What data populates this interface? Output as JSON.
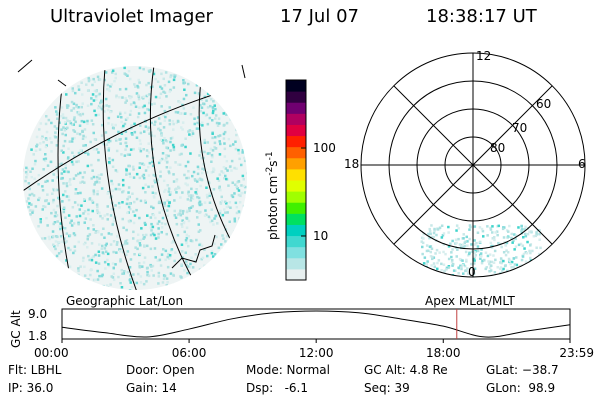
{
  "header": {
    "instrument": "Ultraviolet Imager",
    "date": "17 Jul 07",
    "time": "18:38:17 UT"
  },
  "colorbar": {
    "unit_label": "photon cm",
    "unit_exp1": "-2",
    "unit_mid": "s",
    "unit_exp2": "-1",
    "tick_labels": [
      "100",
      "10"
    ],
    "colors": [
      "#e8f0f0",
      "#b8e6e6",
      "#80e0e0",
      "#40d8d0",
      "#00d0c0",
      "#00e060",
      "#40f000",
      "#a0ff00",
      "#e0ff00",
      "#ffe000",
      "#ffa000",
      "#ff6000",
      "#ff2000",
      "#e00040",
      "#b00060",
      "#700070",
      "#300040",
      "#000020"
    ]
  },
  "polar": {
    "hour_labels": [
      "12",
      "18",
      "6",
      "0"
    ],
    "lat_labels": [
      "60",
      "70",
      "80"
    ]
  },
  "timeline": {
    "left_label": "Geographic Lat/Lon",
    "right_label": "Apex MLat/MLT",
    "y_axis_label": "GC Alt",
    "y_ticks": [
      "9.0",
      "1.8"
    ],
    "x_ticks": [
      "00:00",
      "06:00",
      "12:00",
      "18:00",
      "23:59"
    ],
    "marker_color": "#c04040"
  },
  "info": {
    "flt": "Flt: LBHL",
    "ip": "IP: 36.0",
    "door": "Door: Open",
    "gain": "Gain: 14",
    "mode": "Mode: Normal",
    "dsp": "Dsp:   -6.1",
    "gcalt": "GC Alt: 4.8 Re",
    "seq": "Seq: 39",
    "glat": "GLat: −38.7",
    "glon": "GLon:  98.9"
  },
  "chart_data": {
    "type": "line",
    "title": "",
    "xlabel": "",
    "ylabel": "GC Alt",
    "x": [
      "00:00",
      "02:00",
      "04:00",
      "06:00",
      "08:00",
      "10:00",
      "12:00",
      "14:00",
      "16:00",
      "18:00",
      "20:00",
      "22:00",
      "23:59"
    ],
    "series": [
      {
        "values": [
          4.5,
          3.0,
          1.8,
          4.0,
          6.8,
          8.5,
          9.0,
          8.5,
          6.8,
          4.8,
          1.8,
          3.5,
          5.2
        ]
      }
    ],
    "ylim": [
      1.8,
      9.0
    ],
    "current_time": "18:38:17"
  }
}
